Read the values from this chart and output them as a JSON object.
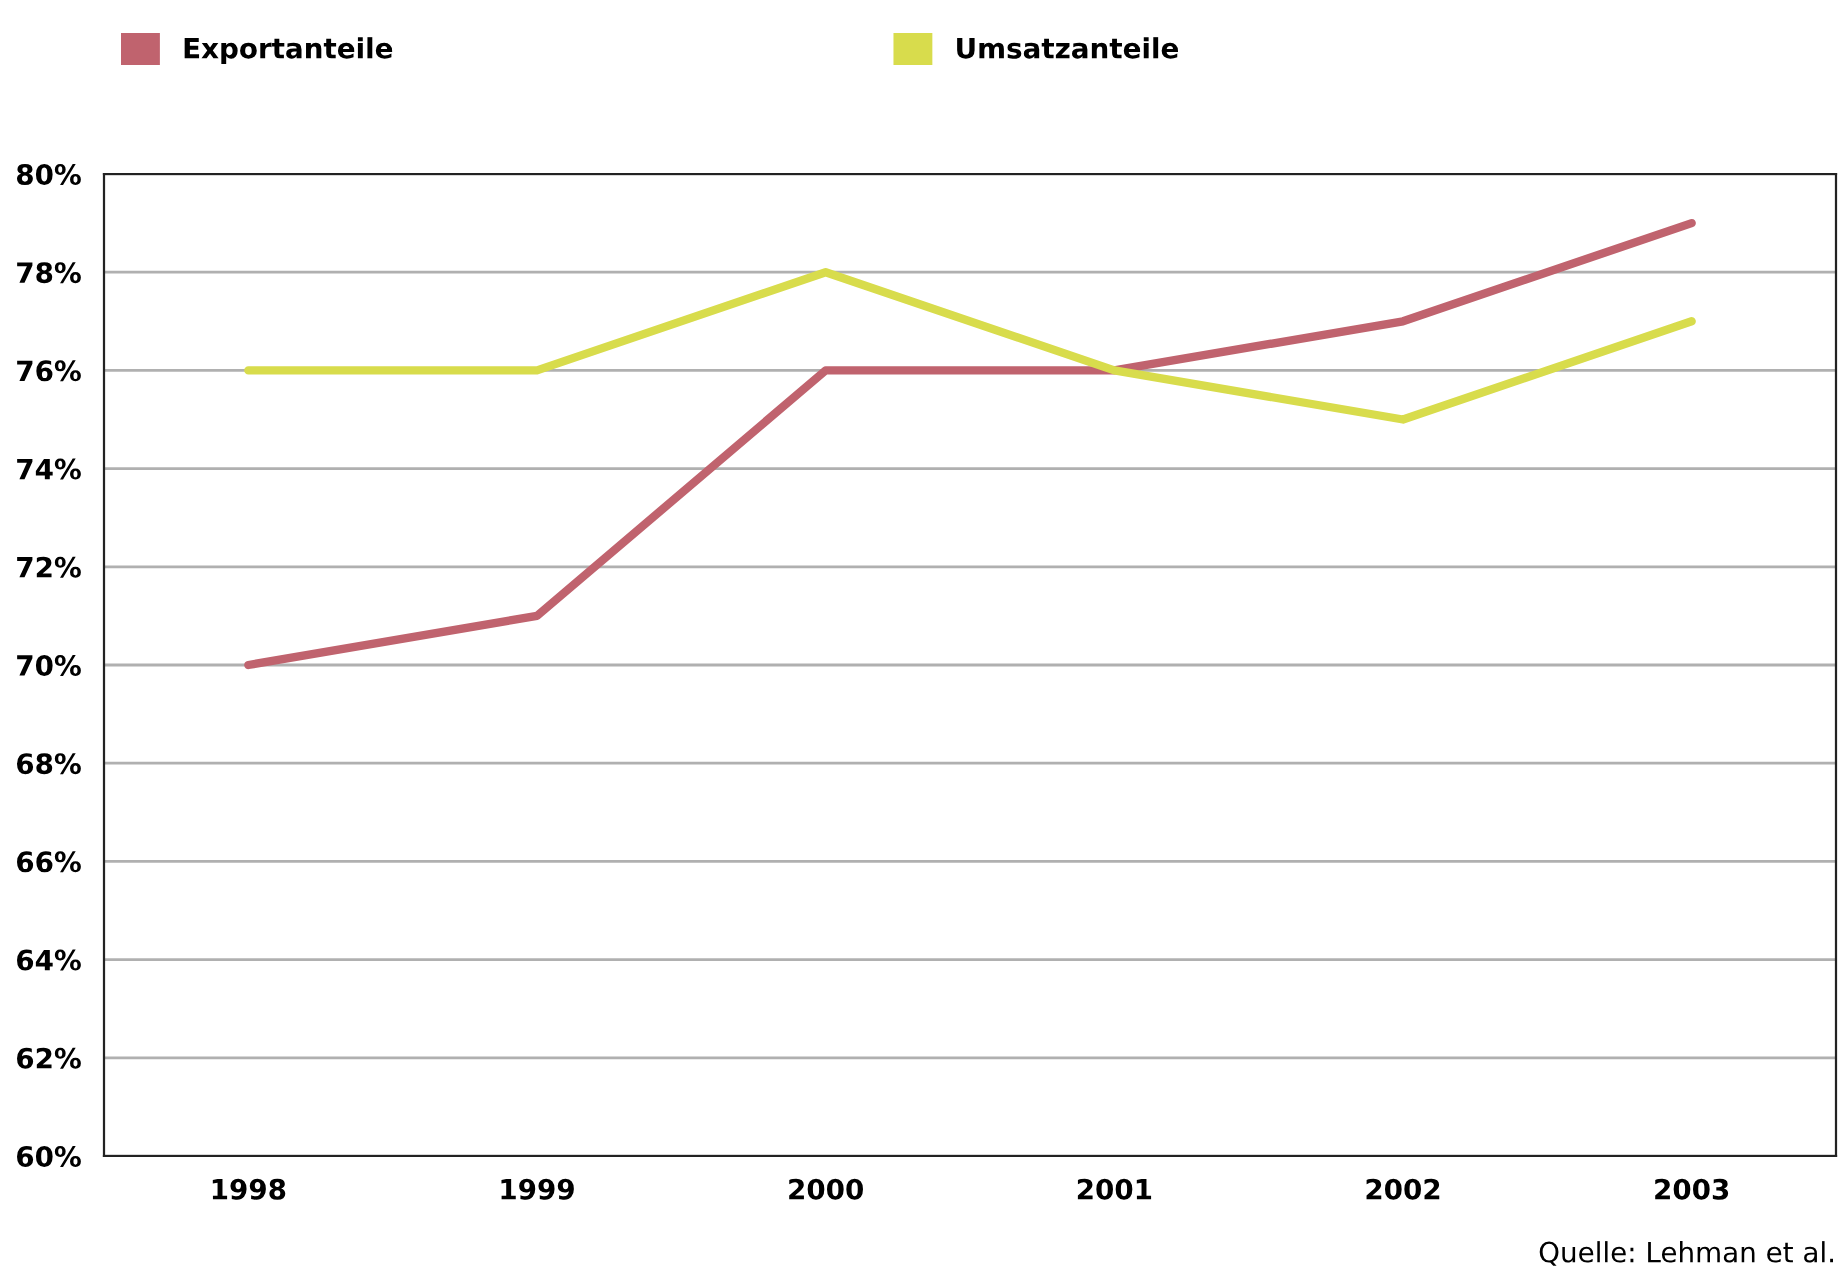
{
  "chart_data": {
    "type": "line",
    "categories": [
      "1998",
      "1999",
      "2000",
      "2001",
      "2002",
      "2003"
    ],
    "series": [
      {
        "name": "Exportanteile",
        "color": "#c0636e",
        "values": [
          70,
          71,
          76,
          76,
          77,
          79
        ]
      },
      {
        "name": "Umsatzanteile",
        "color": "#d8dc4c",
        "values": [
          76,
          76,
          78,
          76,
          75,
          77
        ]
      }
    ],
    "ylim": [
      60,
      80
    ],
    "yticks": [
      {
        "value": 60,
        "label": "60%"
      },
      {
        "value": 62,
        "label": "62%"
      },
      {
        "value": 64,
        "label": "64%"
      },
      {
        "value": 66,
        "label": "66%"
      },
      {
        "value": 68,
        "label": "68%"
      },
      {
        "value": 70,
        "label": "70%"
      },
      {
        "value": 72,
        "label": "72%"
      },
      {
        "value": 74,
        "label": "74%"
      },
      {
        "value": 76,
        "label": "76%"
      },
      {
        "value": 78,
        "label": "78%"
      },
      {
        "value": 80,
        "label": "80%"
      }
    ],
    "grid": "y",
    "legend": "top left",
    "marker": "none",
    "line_style": "solid",
    "annotations": [
      "Quelle: Lehman et al."
    ]
  }
}
